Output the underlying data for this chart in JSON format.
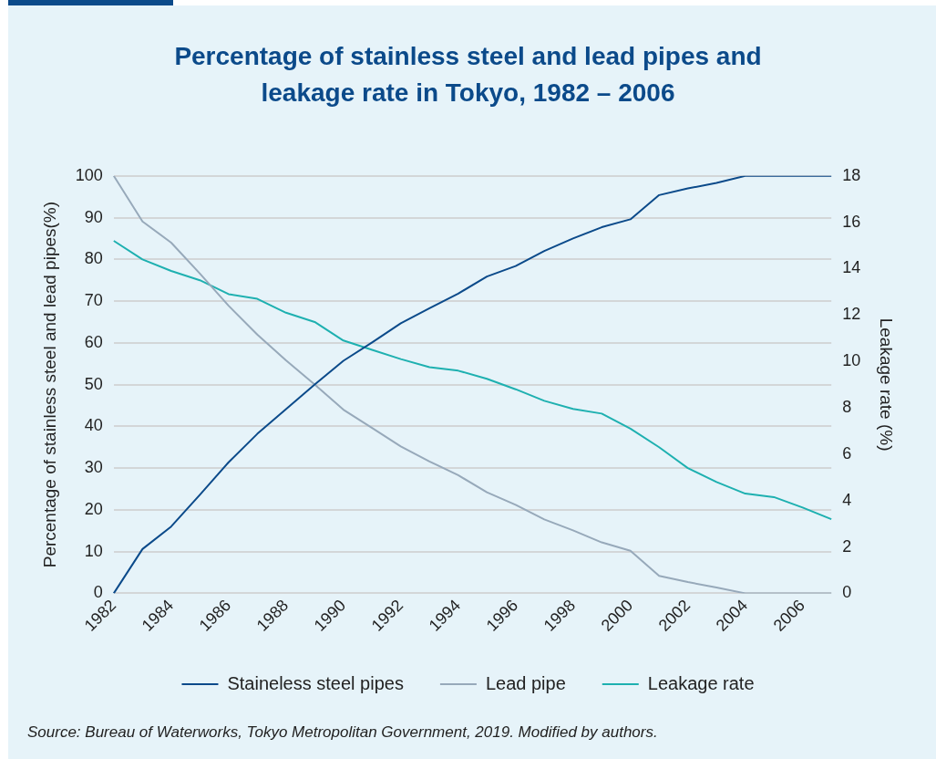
{
  "chart_data": {
    "type": "line",
    "title": "Percentage of stainless steel and lead pipes and leakage rate in Tokyo, 1982 – 2006",
    "ylabel": "Percentage of stainless steel and lead pipes(%)",
    "y2label": "Leakage rate (%)",
    "categories": [
      "1982",
      null,
      "1984",
      null,
      "1986",
      null,
      "1988",
      null,
      "1990",
      null,
      "1992",
      null,
      "1994",
      null,
      "1996",
      null,
      "1998",
      null,
      "2000",
      null,
      "2002",
      null,
      "2004",
      null,
      "2006",
      null
    ],
    "series": [
      {
        "name": "Staineless steel pipes",
        "color": "#0b4a8a",
        "values": [
          0,
          10.6,
          16,
          23.6,
          31.4,
          38.2,
          44.1,
          50,
          55.7,
          60.1,
          64.7,
          68.3,
          71.8,
          75.9,
          78.4,
          82,
          85,
          87.7,
          89.6,
          95.4,
          97,
          98.3,
          100,
          100,
          100,
          100
        ]
      },
      {
        "name": "Lead pipe",
        "color": "#97a9ba",
        "values": [
          100,
          89.1,
          84,
          76.6,
          68.9,
          62,
          55.8,
          50,
          44,
          39.6,
          35.2,
          31.6,
          28.3,
          24.2,
          21.2,
          17.7,
          15.1,
          12.2,
          10.2,
          4.2,
          2.7,
          1.4,
          0,
          0,
          0,
          0
        ]
      },
      {
        "name": "Leakage rate",
        "color": "#1eb0b0",
        "axis": "y2",
        "values": [
          15.2,
          14.4,
          13.9,
          13.5,
          12.9,
          12.7,
          12.1,
          11.7,
          10.9,
          10.5,
          10.1,
          9.75,
          9.6,
          9.25,
          8.8,
          8.3,
          7.95,
          7.75,
          7.1,
          6.3,
          5.4,
          4.8,
          4.3,
          4.15,
          3.7,
          3.2
        ]
      }
    ],
    "ylim": [
      0,
      100
    ],
    "yticks": [
      0,
      10,
      20,
      30,
      40,
      50,
      60,
      70,
      80,
      90,
      100
    ],
    "y2lim": [
      0,
      18
    ],
    "y2ticks": [
      0,
      2,
      4,
      6,
      8,
      10,
      12,
      14,
      16,
      18
    ],
    "grid": "y",
    "legend": "bottom",
    "marker": "none",
    "line_style": "solid",
    "annotations": [
      "Source: Bureau of Waterworks, Tokyo Metropolitan Government, 2019. Modified by authors."
    ]
  }
}
